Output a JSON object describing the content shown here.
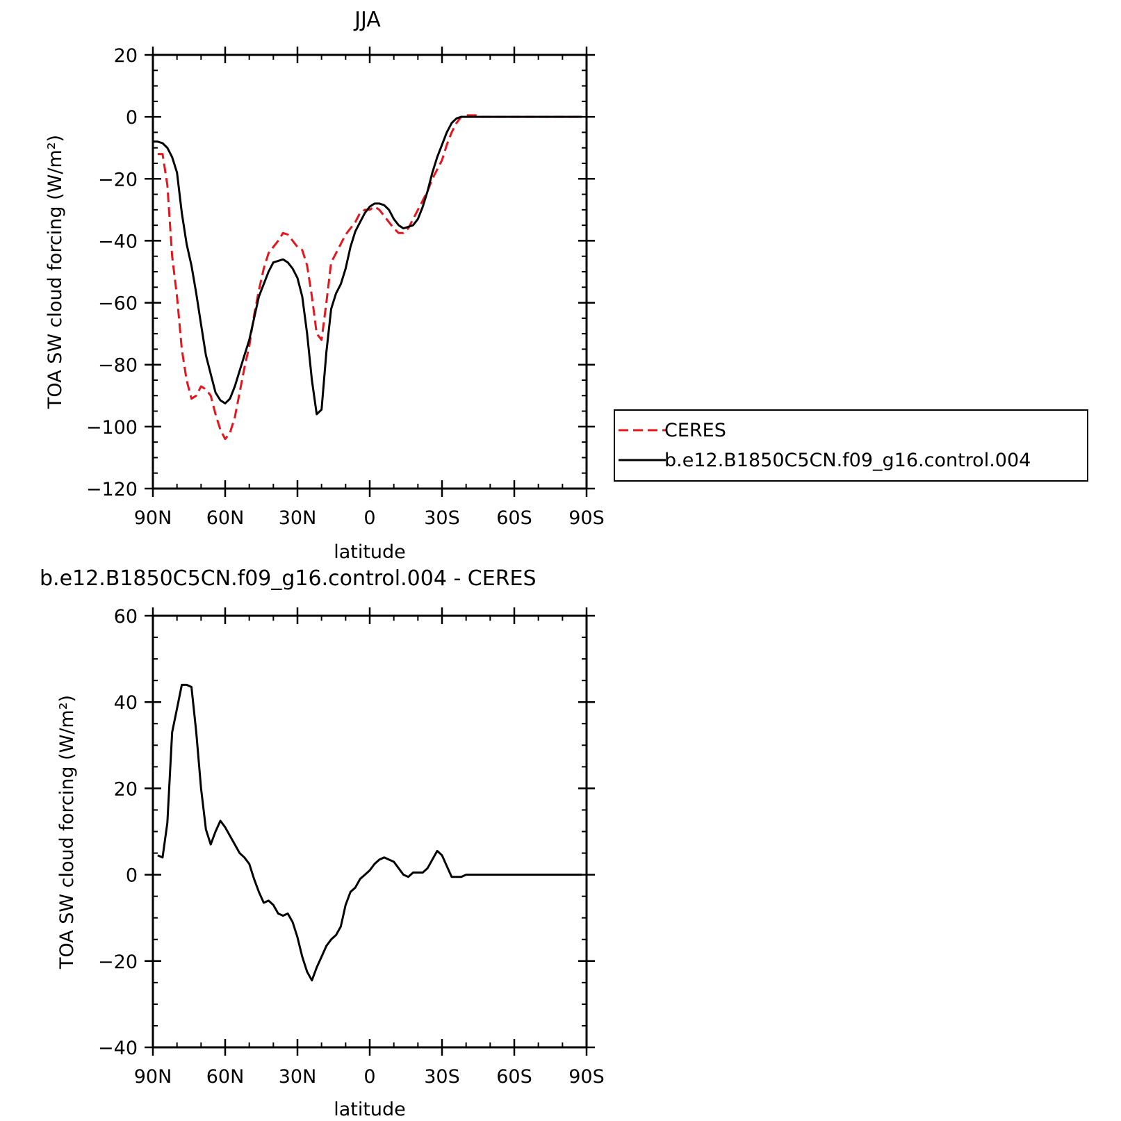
{
  "chart_data": [
    {
      "type": "line",
      "title": "JJA",
      "xlabel": "latitude",
      "ylabel": "TOA SW cloud forcing (W/m²)",
      "ylim": [
        -120,
        20
      ],
      "yticks": [
        20,
        0,
        -20,
        -40,
        -60,
        -80,
        -100,
        -120
      ],
      "xlim": [
        -90,
        90
      ],
      "xticks": [
        {
          "value": -90,
          "label": "90N"
        },
        {
          "value": -60,
          "label": "60N"
        },
        {
          "value": -30,
          "label": "30N"
        },
        {
          "value": 0,
          "label": "0"
        },
        {
          "value": 30,
          "label": "30S"
        },
        {
          "value": 60,
          "label": "60S"
        },
        {
          "value": 90,
          "label": "90S"
        }
      ],
      "legend_position": "right",
      "series": [
        {
          "name": "CERES",
          "color": "#e8141c",
          "dash": "dashed",
          "x": [
            -88,
            -86,
            -84,
            -82,
            -80,
            -78,
            -76,
            -74,
            -72,
            -70,
            -68,
            -66,
            -64,
            -62,
            -60,
            -58,
            -56,
            -54,
            -52,
            -50,
            -48,
            -46,
            -44,
            -42,
            -40,
            -38,
            -36,
            -34,
            -32,
            -30,
            -28,
            -26,
            -24,
            -22,
            -20,
            -18,
            -16,
            -14,
            -12,
            -10,
            -8,
            -6,
            -4,
            -2,
            0,
            2,
            4,
            6,
            8,
            10,
            12,
            14,
            16,
            18,
            20,
            22,
            24,
            26,
            28,
            30,
            32,
            34,
            36,
            38,
            40,
            42,
            44,
            46,
            48,
            50,
            52,
            54,
            56,
            58,
            60,
            62,
            64,
            66,
            68,
            70,
            72,
            74,
            76,
            78,
            80,
            82,
            84,
            86,
            88
          ],
          "values": [
            -12,
            -12,
            -22,
            -45,
            -58,
            -75,
            -85,
            -91,
            -90,
            -87,
            -88,
            -90,
            -96,
            -101,
            -104,
            -102,
            -97,
            -89,
            -81,
            -74,
            -64,
            -56,
            -49,
            -44,
            -42,
            -40,
            -37.5,
            -38,
            -40,
            -42,
            -43,
            -48,
            -58,
            -70,
            -72,
            -60,
            -47,
            -44,
            -41,
            -38,
            -36,
            -34,
            -31,
            -30,
            -30,
            -29,
            -30,
            -32,
            -34,
            -36,
            -37.5,
            -37.5,
            -36,
            -33,
            -30,
            -27,
            -24,
            -20,
            -17,
            -14,
            -9,
            -5,
            -2,
            0,
            0.5,
            0.5,
            0.5,
            0,
            0,
            0,
            0,
            0,
            0,
            0,
            0,
            0,
            0,
            0,
            0,
            0,
            0,
            0,
            0,
            0,
            0,
            0,
            0,
            0,
            0
          ]
        },
        {
          "name": "b.e12.B1850C5CN.f09_g16.control.004",
          "color": "#000000",
          "dash": "solid",
          "x": [
            -90,
            -88,
            -86,
            -84,
            -82,
            -80,
            -78,
            -76,
            -74,
            -72,
            -70,
            -68,
            -66,
            -64,
            -62,
            -60,
            -58,
            -56,
            -54,
            -52,
            -50,
            -48,
            -46,
            -44,
            -42,
            -40,
            -38,
            -36,
            -34,
            -32,
            -30,
            -28,
            -26,
            -24,
            -22,
            -20,
            -18,
            -16,
            -14,
            -12,
            -10,
            -8,
            -6,
            -4,
            -2,
            0,
            2,
            4,
            6,
            8,
            10,
            12,
            14,
            16,
            18,
            20,
            22,
            24,
            26,
            28,
            30,
            32,
            34,
            36,
            38,
            40,
            42,
            44,
            46,
            48,
            50,
            52,
            54,
            56,
            58,
            60,
            62,
            64,
            66,
            68,
            70,
            72,
            74,
            76,
            78,
            80,
            82,
            84,
            86,
            88
          ],
          "values": [
            -8,
            -8,
            -8.5,
            -10,
            -13,
            -18,
            -31,
            -41,
            -48,
            -57,
            -67,
            -77,
            -83,
            -89,
            -91.5,
            -92.5,
            -91,
            -87,
            -82,
            -77,
            -72,
            -65,
            -58,
            -54,
            -50,
            -47,
            -46.5,
            -46,
            -47,
            -49,
            -52,
            -58,
            -70,
            -85,
            -96,
            -94.5,
            -76,
            -62,
            -57,
            -54,
            -49,
            -42,
            -37,
            -34,
            -31,
            -29,
            -28,
            -28,
            -28.5,
            -30,
            -33,
            -35,
            -36,
            -35.5,
            -35,
            -33,
            -29,
            -24,
            -18,
            -13,
            -9,
            -5,
            -2,
            -0.5,
            0,
            0,
            0,
            0,
            0,
            0,
            0,
            0,
            0,
            0,
            0,
            0,
            0,
            0,
            0,
            0,
            0,
            0,
            0,
            0,
            0,
            0,
            0,
            0,
            0,
            0
          ]
        }
      ]
    },
    {
      "type": "line",
      "title": "b.e12.B1850C5CN.f09_g16.control.004 - CERES",
      "xlabel": "latitude",
      "ylabel": "TOA SW cloud forcing (W/m²)",
      "ylim": [
        -40,
        60
      ],
      "yticks": [
        60,
        40,
        20,
        0,
        -20,
        -40
      ],
      "xlim": [
        -90,
        90
      ],
      "xticks": [
        {
          "value": -90,
          "label": "90N"
        },
        {
          "value": -60,
          "label": "60N"
        },
        {
          "value": -30,
          "label": "30N"
        },
        {
          "value": 0,
          "label": "0"
        },
        {
          "value": 30,
          "label": "30S"
        },
        {
          "value": 60,
          "label": "60S"
        },
        {
          "value": 90,
          "label": "90S"
        }
      ],
      "series": [
        {
          "color": "#000000",
          "dash": "solid",
          "x": [
            -88,
            -86,
            -84,
            -82,
            -80,
            -78,
            -76,
            -74,
            -72,
            -70,
            -68,
            -66,
            -64,
            -62,
            -60,
            -58,
            -56,
            -54,
            -52,
            -50,
            -48,
            -46,
            -44,
            -42,
            -40,
            -38,
            -36,
            -34,
            -32,
            -30,
            -28,
            -26,
            -24,
            -22,
            -20,
            -18,
            -16,
            -14,
            -12,
            -10,
            -8,
            -6,
            -4,
            -2,
            0,
            2,
            4,
            6,
            8,
            10,
            12,
            14,
            16,
            18,
            20,
            22,
            24,
            26,
            28,
            30,
            32,
            34,
            36,
            38,
            40,
            42,
            44,
            46,
            48,
            50,
            52,
            54,
            56,
            58,
            60,
            62,
            64,
            66,
            68,
            70,
            72,
            74,
            76,
            78,
            80,
            82,
            84,
            86,
            88
          ],
          "values": [
            4.5,
            4,
            12,
            33,
            38.5,
            44,
            44,
            43.5,
            33,
            20,
            10.5,
            7,
            10,
            12.5,
            11,
            9,
            7,
            5,
            4,
            2.5,
            -1,
            -4,
            -6.5,
            -6,
            -7,
            -9,
            -9.5,
            -9,
            -11,
            -14.5,
            -19,
            -22.5,
            -24.5,
            -21.5,
            -19,
            -16.5,
            -15,
            -14,
            -12,
            -7,
            -4,
            -3,
            -1,
            0,
            1,
            2.5,
            3.5,
            4,
            3.5,
            3,
            1.5,
            0,
            -0.5,
            0.5,
            0.5,
            0.5,
            1.5,
            3.5,
            5.5,
            4.5,
            2,
            -0.5,
            -0.5,
            -0.5,
            0,
            0,
            0,
            0,
            0,
            0,
            0,
            0,
            0,
            0,
            0,
            0,
            0,
            0,
            0,
            0,
            0,
            0,
            0,
            0,
            0,
            0,
            0,
            0,
            0
          ]
        }
      ]
    }
  ]
}
